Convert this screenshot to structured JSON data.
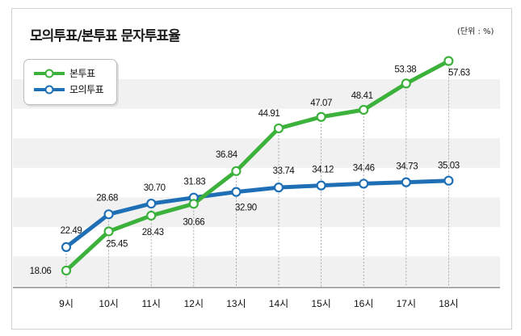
{
  "title": "모의투표/본투표 문자투표율",
  "unit": "(단위 : %)",
  "colors": {
    "green": "#3cb13c",
    "blue": "#1e6fb5",
    "band": "#f1f1f1",
    "dashed": "#9a9a9a"
  },
  "chart_data": {
    "type": "line",
    "categories": [
      "9시",
      "10시",
      "11시",
      "12시",
      "13시",
      "14시",
      "15시",
      "16시",
      "17시",
      "18시"
    ],
    "series": [
      {
        "name": "본투표",
        "color": "#3cb13c",
        "values": [
          18.06,
          25.45,
          28.43,
          30.66,
          36.84,
          44.91,
          47.07,
          48.41,
          53.38,
          57.63
        ],
        "labels": [
          "18.06",
          "25.45",
          "28.43",
          "30.66",
          "36.84",
          "44.91",
          "47.07",
          "48.41",
          "53.38",
          "57.63"
        ]
      },
      {
        "name": "모의투표",
        "color": "#1e6fb5",
        "values": [
          22.49,
          28.68,
          30.7,
          31.83,
          32.9,
          33.74,
          34.12,
          34.46,
          34.73,
          35.03
        ],
        "labels": [
          "22.49",
          "28.68",
          "30.70",
          "31.83",
          "32.90",
          "33.74",
          "34.12",
          "34.46",
          "34.73",
          "35.03"
        ]
      }
    ],
    "xlabel": "",
    "ylabel": "",
    "ylim": [
      15,
      60
    ],
    "grid": "alternating horizontal bands",
    "legend": "top-left"
  }
}
